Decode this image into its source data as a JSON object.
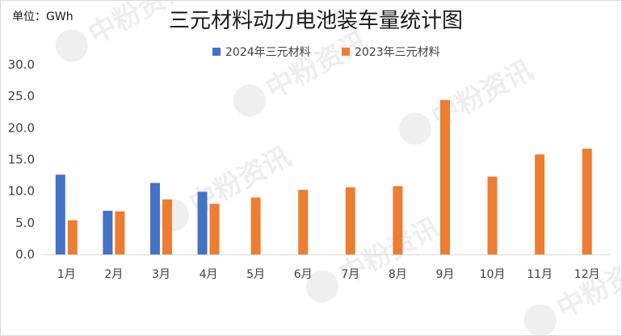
{
  "chart_data": {
    "type": "bar",
    "title": "三元材料动力电池装车量统计图",
    "unit_label": "单位：GWh",
    "categories": [
      "1月",
      "2月",
      "3月",
      "4月",
      "5月",
      "6月",
      "7月",
      "8月",
      "9月",
      "10月",
      "11月",
      "12月"
    ],
    "series": [
      {
        "name": "2024年三元材料",
        "color": "#4472c4",
        "values": [
          12.6,
          6.9,
          11.3,
          9.9,
          null,
          null,
          null,
          null,
          null,
          null,
          null,
          null
        ]
      },
      {
        "name": "2023年三元材料",
        "color": "#ed7d31",
        "values": [
          5.4,
          6.8,
          8.7,
          8.0,
          9.0,
          10.2,
          10.6,
          10.8,
          24.4,
          12.3,
          15.8,
          16.7
        ]
      }
    ],
    "y_ticks": [
      "0.0",
      "5.0",
      "10.0",
      "15.0",
      "20.0",
      "25.0",
      "30.0"
    ],
    "ylim": [
      0,
      30
    ],
    "grid": false,
    "legend_position": "top"
  },
  "watermark": {
    "text": "中粉资讯",
    "icon": "p-logo-icon"
  }
}
